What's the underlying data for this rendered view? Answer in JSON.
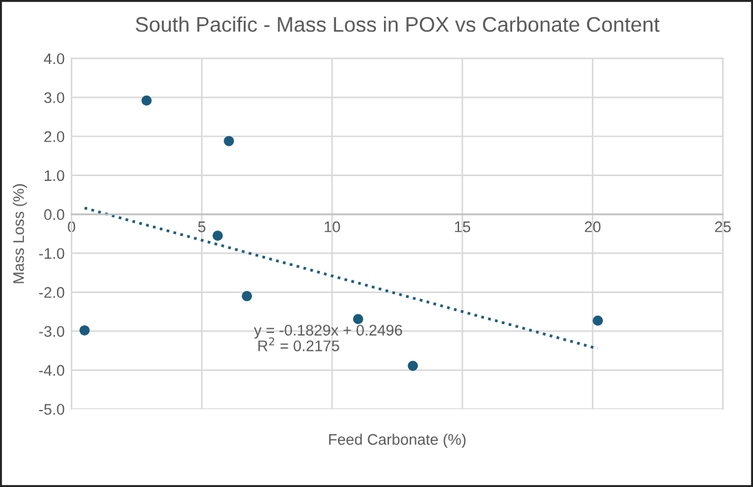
{
  "chart_data": {
    "type": "scatter",
    "title": "South Pacific - Mass Loss in POX vs Carbonate Content",
    "xlabel": "Feed Carbonate (%)",
    "ylabel": "Mass Loss (%)",
    "series": [
      {
        "color": "#1b5b7e",
        "x": [
          0.5,
          2.88,
          6.04,
          5.61,
          6.73,
          11.0,
          13.1,
          20.2
        ],
        "values": [
          -2.98,
          2.92,
          1.88,
          -0.55,
          -2.1,
          -2.69,
          -3.89,
          -2.73
        ],
        "marker": "circle"
      },
      {
        "type": "line",
        "color": "#1b5b7e",
        "x": [
          0.5,
          20.2
        ],
        "values": [
          0.16,
          -3.45
        ],
        "line_style": "dotted",
        "marker": "none"
      }
    ],
    "annotations": [
      "y = -0.1829x + 0.2496",
      "R$^{2}$ = 0.2175"
    ],
    "xlim": [
      0,
      25
    ],
    "xticks": [
      0,
      5,
      10,
      15,
      20,
      25
    ],
    "ylim": [
      -5,
      4
    ],
    "yticks": [
      {
        "value": -5,
        "label": "-5.0"
      },
      {
        "value": -4,
        "label": "-4.0"
      },
      {
        "value": -3,
        "label": "-3.0"
      },
      {
        "value": -2,
        "label": "-2.0"
      },
      {
        "value": -1,
        "label": "-1.0"
      },
      {
        "value": 0,
        "label": "0.0"
      },
      {
        "value": 1,
        "label": "1.0"
      },
      {
        "value": 2,
        "label": "2.0"
      },
      {
        "value": 3,
        "label": "3.0"
      },
      {
        "value": 4,
        "label": "4.0"
      }
    ],
    "grid": true
  }
}
